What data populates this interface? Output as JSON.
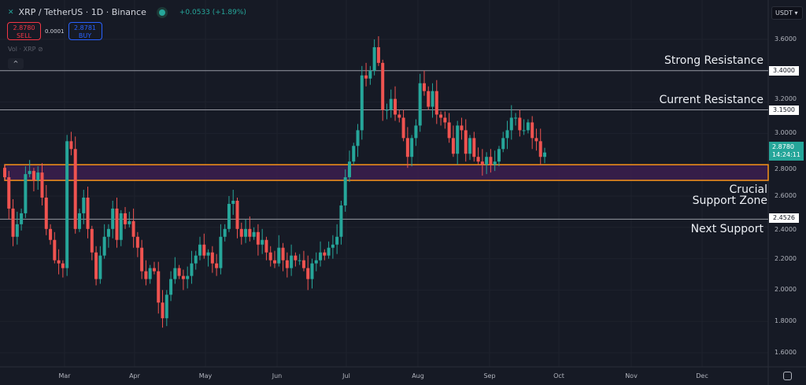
{
  "header": {
    "symbol": "XRP / TetherUS · 1D · Binance",
    "change": "+0.0533 (+1.89%)",
    "sell_price": "2.8780",
    "sell_label": "SELL",
    "spread": "0.0001",
    "buy_price": "2.8781",
    "buy_label": "BUY",
    "volume_label": "Vol · XRP",
    "currency": "USDT ▾"
  },
  "price_axis": {
    "ticks": [
      "3.6000",
      "3.2000",
      "3.0000",
      "2.8000",
      "2.6000",
      "2.4000",
      "2.2000",
      "2.0000",
      "1.8000",
      "1.6000"
    ],
    "current_price": "2.8780",
    "countdown": "14:24:11"
  },
  "time_axis": [
    "Mar",
    "Apr",
    "May",
    "Jun",
    "Jul",
    "Aug",
    "Sep",
    "Oct",
    "Nov",
    "Dec"
  ],
  "annotations": {
    "strong_resistance": {
      "label": "Strong Resistance",
      "price": "3.4000"
    },
    "current_resistance": {
      "label": "Current Resistance",
      "price": "3.1500"
    },
    "support_zone": {
      "label_line1": "Crucial",
      "label_line2": "Support Zone",
      "low": 2.7,
      "high": 2.8
    },
    "next_support": {
      "label": "Next Support",
      "price": "2.4526"
    }
  },
  "colors": {
    "up": "#26a69a",
    "down": "#ef5350",
    "zone_fill": "#3b1f4f",
    "zone_border": "#f7931a",
    "bg": "#161a25"
  },
  "chart_data": {
    "type": "candlestick",
    "ylim": [
      1.5,
      3.7
    ],
    "closes": [
      2.72,
      2.52,
      2.34,
      2.42,
      2.49,
      2.74,
      2.76,
      2.7,
      2.75,
      2.59,
      2.39,
      2.32,
      2.19,
      2.17,
      2.14,
      2.95,
      2.9,
      2.39,
      2.49,
      2.59,
      2.39,
      2.24,
      2.07,
      2.22,
      2.34,
      2.39,
      2.52,
      2.32,
      2.49,
      2.42,
      2.44,
      2.34,
      2.27,
      2.12,
      2.07,
      2.14,
      2.12,
      1.92,
      1.82,
      1.97,
      2.07,
      2.14,
      2.09,
      2.07,
      2.09,
      2.17,
      2.22,
      2.29,
      2.22,
      2.24,
      2.17,
      2.14,
      2.34,
      2.39,
      2.55,
      2.57,
      2.39,
      2.34,
      2.39,
      2.34,
      2.37,
      2.29,
      2.32,
      2.24,
      2.19,
      2.17,
      2.27,
      2.19,
      2.14,
      2.22,
      2.19,
      2.19,
      2.14,
      2.07,
      2.17,
      2.19,
      2.24,
      2.22,
      2.27,
      2.29,
      2.34,
      2.54,
      2.72,
      2.82,
      2.92,
      3.02,
      3.37,
      3.35,
      3.4,
      3.55,
      3.45,
      3.15,
      3.15,
      3.22,
      3.12,
      3.1,
      2.97,
      2.85,
      2.97,
      3.05,
      3.32,
      3.27,
      3.17,
      3.27,
      3.12,
      3.1,
      3.07,
      2.97,
      2.87,
      3.05,
      3.02,
      2.87,
      2.97,
      2.85,
      2.82,
      2.8,
      2.85,
      2.8,
      2.82,
      2.9,
      2.97,
      3.02,
      3.1,
      3.1,
      3.02,
      3.02,
      3.07,
      2.97,
      2.95,
      2.85,
      2.878
    ]
  }
}
